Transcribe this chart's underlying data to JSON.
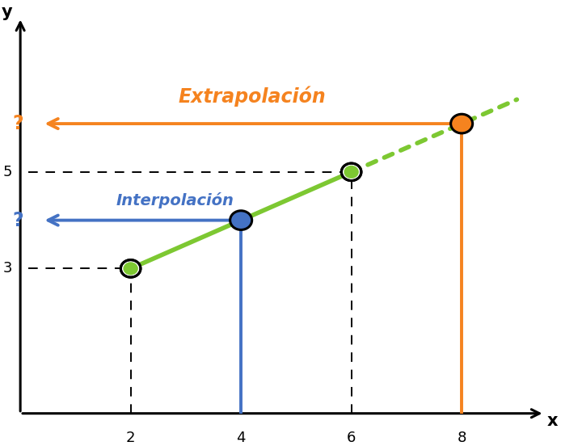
{
  "known_points": [
    [
      2,
      3
    ],
    [
      6,
      5
    ]
  ],
  "interp_point": [
    4,
    4.0
  ],
  "extrap_point": [
    8,
    6.0
  ],
  "extrap_y": 6.0,
  "interp_y": 4.0,
  "y_tick_3": 3,
  "y_tick_5": 5,
  "x_ticks": [
    2,
    4,
    6,
    8
  ],
  "green_line_color": "#7DC832",
  "orange_color": "#F5831F",
  "blue_color": "#4472C4",
  "bg_color": "#ffffff",
  "xlabel": "x",
  "ylabel": "y",
  "xlim": [
    0,
    9.5
  ],
  "ylim": [
    0,
    8.2
  ],
  "extrap_label": "Extrapolación",
  "interp_label": "Interpolación",
  "question_extrap": "?",
  "question_interp": "?"
}
